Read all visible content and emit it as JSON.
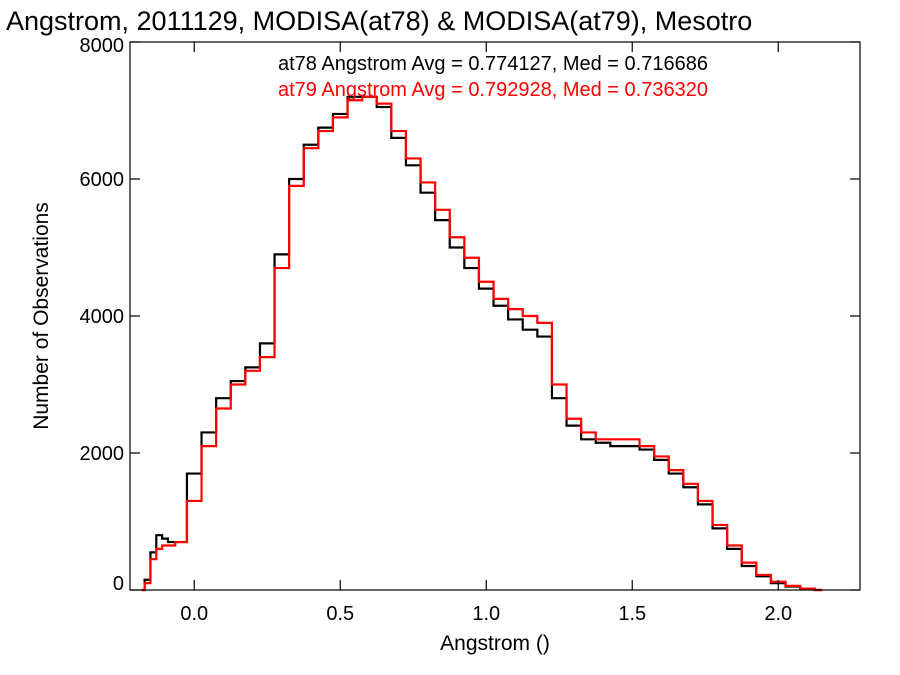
{
  "chart_data": {
    "type": "line",
    "title": "Angstrom, 2011129, MODISA(at78) & MODISA(at79), Mesotro",
    "xlabel": "Angstrom ()",
    "ylabel": "Number of Observations",
    "xlim": [
      -0.22,
      2.28
    ],
    "ylim": [
      0,
      8000
    ],
    "x_ticks": [
      0.0,
      0.5,
      1.0,
      1.5,
      2.0
    ],
    "x_tick_labels": [
      "0.0",
      "0.5",
      "1.0",
      "1.5",
      "2.0"
    ],
    "y_ticks": [
      0,
      2000,
      4000,
      6000,
      8000
    ],
    "y_tick_labels": [
      "0",
      "2000",
      "4000",
      "6000",
      "8000"
    ],
    "grid": false,
    "legend_position": "top-right",
    "annotations": [
      "at78 Angstrom Avg = 0.774127, Med = 0.716686",
      "at79 Angstrom Avg = 0.792928, Med = 0.736320"
    ],
    "series": [
      {
        "color": "#000000",
        "x": [
          -0.18,
          -0.16,
          -0.14,
          -0.12,
          -0.1,
          -0.08,
          -0.05,
          0.0,
          0.05,
          0.1,
          0.15,
          0.2,
          0.25,
          0.3,
          0.35,
          0.4,
          0.45,
          0.5,
          0.55,
          0.6,
          0.65,
          0.7,
          0.75,
          0.8,
          0.85,
          0.9,
          0.95,
          1.0,
          1.05,
          1.1,
          1.15,
          1.2,
          1.25,
          1.3,
          1.35,
          1.4,
          1.45,
          1.5,
          1.55,
          1.6,
          1.65,
          1.7,
          1.75,
          1.8,
          1.85,
          1.9,
          1.95,
          2.0,
          2.05,
          2.1,
          2.15
        ],
        "y": [
          0,
          150,
          550,
          800,
          750,
          700,
          700,
          1700,
          2300,
          2800,
          3050,
          3250,
          3600,
          4900,
          6000,
          6500,
          6750,
          6950,
          7200,
          7200,
          7050,
          6600,
          6200,
          5800,
          5400,
          5000,
          4700,
          4400,
          4150,
          3950,
          3800,
          3700,
          2800,
          2400,
          2200,
          2150,
          2100,
          2100,
          2050,
          1900,
          1700,
          1500,
          1250,
          900,
          600,
          350,
          200,
          100,
          50,
          20,
          0
        ]
      },
      {
        "color": "#ff0000",
        "x": [
          -0.18,
          -0.16,
          -0.14,
          -0.12,
          -0.1,
          -0.08,
          -0.05,
          0.0,
          0.05,
          0.1,
          0.15,
          0.2,
          0.25,
          0.3,
          0.35,
          0.4,
          0.45,
          0.5,
          0.55,
          0.6,
          0.65,
          0.7,
          0.75,
          0.8,
          0.85,
          0.9,
          0.95,
          1.0,
          1.05,
          1.1,
          1.15,
          1.2,
          1.25,
          1.3,
          1.35,
          1.4,
          1.45,
          1.5,
          1.55,
          1.6,
          1.65,
          1.7,
          1.75,
          1.8,
          1.85,
          1.9,
          1.95,
          2.0,
          2.05,
          2.1,
          2.15
        ],
        "y": [
          0,
          100,
          450,
          600,
          650,
          650,
          700,
          1300,
          2100,
          2650,
          3000,
          3200,
          3400,
          4700,
          5900,
          6450,
          6700,
          6900,
          7150,
          7200,
          7100,
          6700,
          6300,
          5950,
          5550,
          5150,
          4850,
          4500,
          4250,
          4100,
          4000,
          3900,
          3000,
          2500,
          2300,
          2200,
          2200,
          2200,
          2100,
          1950,
          1750,
          1550,
          1300,
          950,
          650,
          400,
          220,
          120,
          60,
          20,
          0
        ]
      }
    ]
  }
}
